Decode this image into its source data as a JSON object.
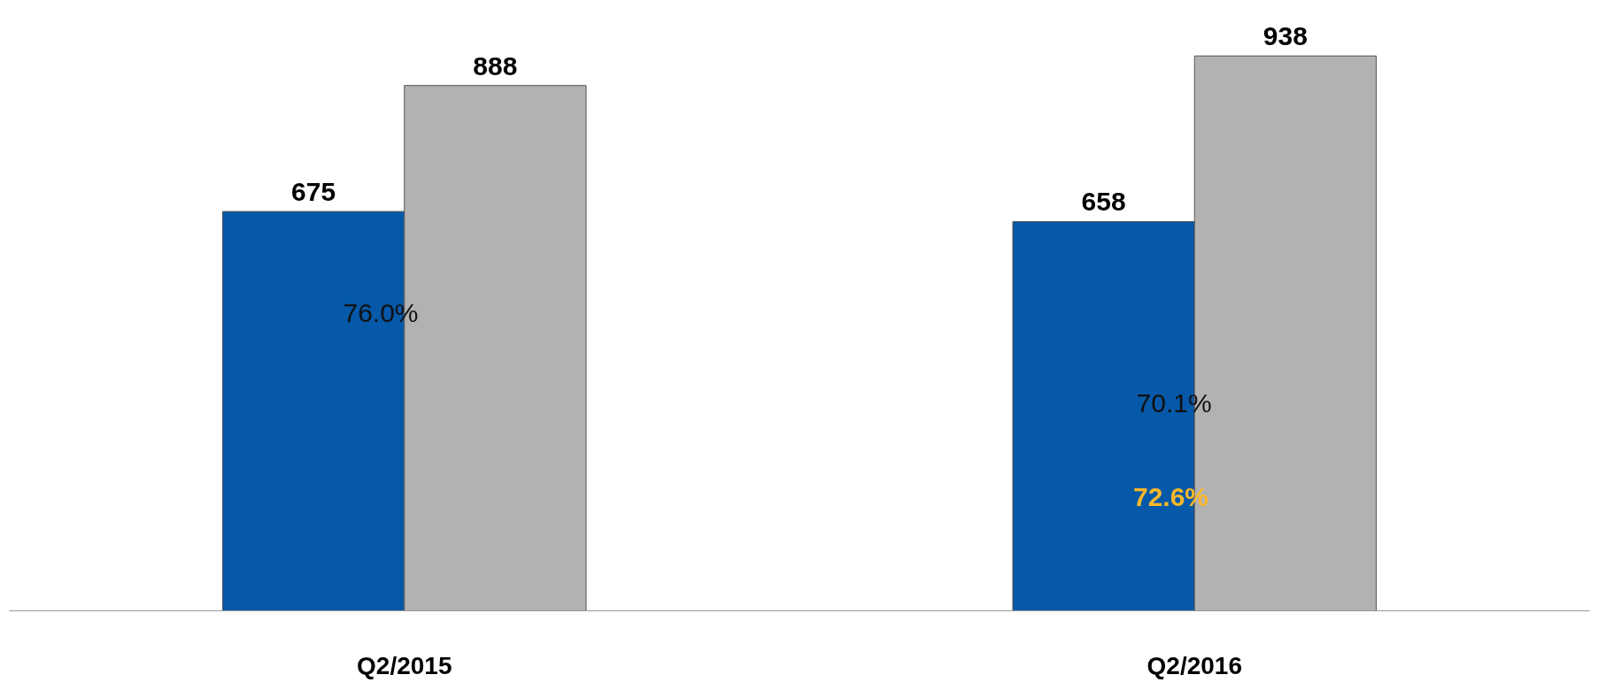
{
  "chart_data": {
    "type": "bar",
    "categories": [
      "Q2/2015",
      "Q2/2016"
    ],
    "series": [
      {
        "color": "#0659a8",
        "values": [
          675,
          658
        ]
      },
      {
        "color": "#b2b2b2",
        "values": [
          888,
          938
        ]
      }
    ],
    "tick_labels": "x",
    "data_labels": true,
    "grid": false,
    "annotations": [
      "76.0%",
      "70.1%",
      "72.6%"
    ]
  }
}
